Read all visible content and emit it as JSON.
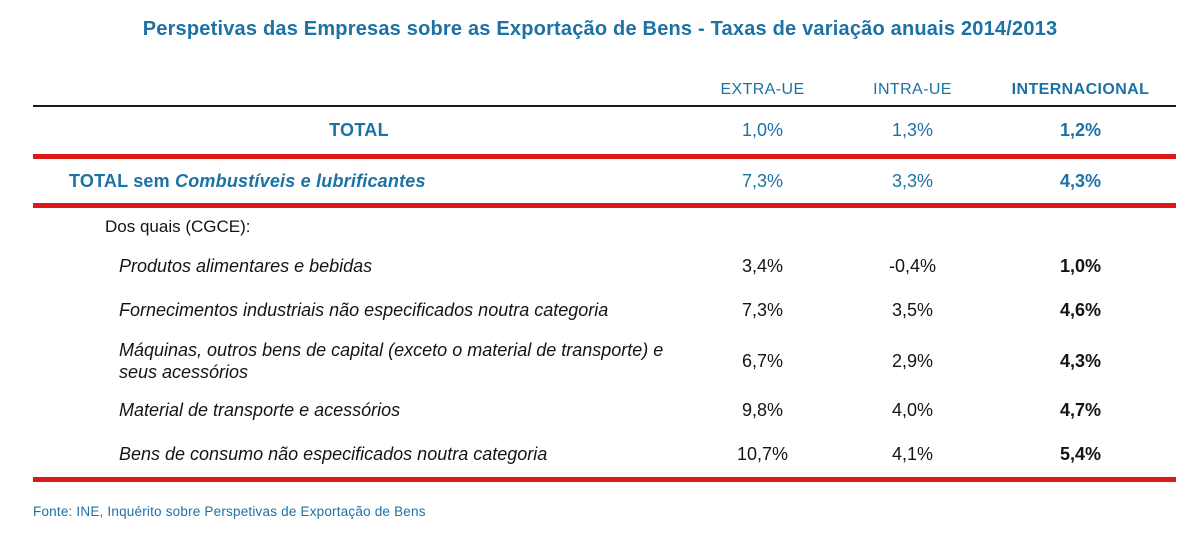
{
  "title": "Perspetivas das Empresas sobre as Exportação de Bens - Taxas de variação anuais 2014/2013",
  "table": {
    "columns": [
      "EXTRA-UE",
      "INTRA-UE",
      "INTERNACIONAL"
    ],
    "total_row": {
      "label": "TOTAL",
      "extra_ue": "1,0%",
      "intra_ue": "1,3%",
      "internacional": "1,2%"
    },
    "total_excl_row": {
      "label_prefix": "TOTAL sem ",
      "label_italic": "Combustíveis e lubrificantes",
      "extra_ue": "7,3%",
      "intra_ue": "3,3%",
      "internacional": "4,3%"
    },
    "section_label": "Dos quais (CGCE):",
    "category_rows": [
      {
        "label": "Produtos alimentares e bebidas",
        "extra_ue": "3,4%",
        "intra_ue": "-0,4%",
        "internacional": "1,0%"
      },
      {
        "label": "Fornecimentos industriais não especificados noutra categoria",
        "extra_ue": "7,3%",
        "intra_ue": "3,5%",
        "internacional": "4,6%"
      },
      {
        "label": "Máquinas, outros bens de capital (exceto o material de transporte) e seus acessórios",
        "extra_ue": "6,7%",
        "intra_ue": "2,9%",
        "internacional": "4,3%"
      },
      {
        "label": "Material de transporte e acessórios",
        "extra_ue": "9,8%",
        "intra_ue": "4,0%",
        "internacional": "4,7%"
      },
      {
        "label": "Bens de consumo não especificados noutra categoria",
        "extra_ue": "10,7%",
        "intra_ue": "4,1%",
        "internacional": "5,4%"
      }
    ]
  },
  "footer": {
    "source": "Fonte: INE, Inquérito sobre Perspetivas de Exportação de Bens"
  },
  "colors": {
    "accent_blue": "#1c71a5",
    "rule_red": "#de1818",
    "rule_black": "#1a1a1a",
    "text_black": "#141414"
  }
}
